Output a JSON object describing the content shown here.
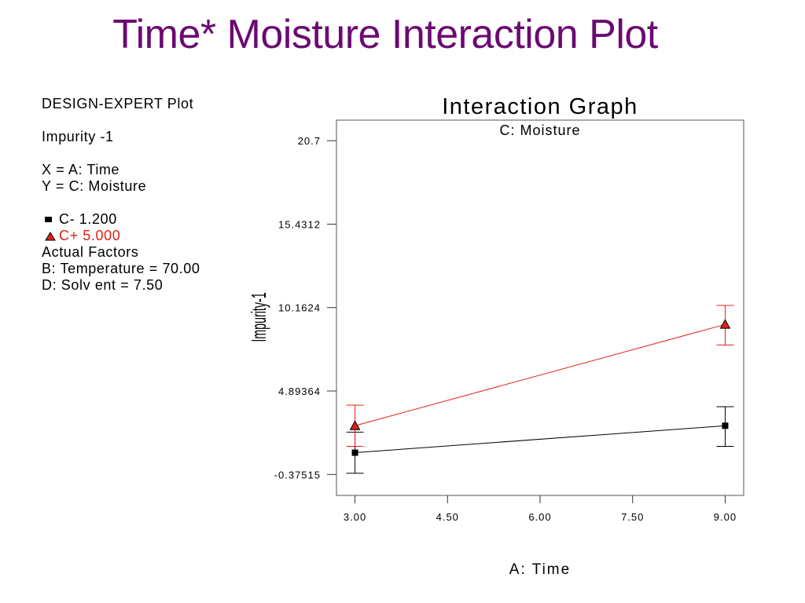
{
  "slide": {
    "title": "Time* Moisture Interaction Plot"
  },
  "info_panel": {
    "plot_label": "DESIGN-EXPERT Plot",
    "response": "Impurity -1",
    "x_def": "X = A: Time",
    "y_def": "Y = C: Moisture",
    "legend": [
      {
        "label": "C- 1.200",
        "color": "#000000",
        "marker": "square"
      },
      {
        "label": "C+ 5.000",
        "color": "#e0201a",
        "marker": "triangle"
      }
    ],
    "actual_factors_label": "Actual Factors",
    "factor_b": "B: Temperature = 70.00",
    "factor_d": "D: Solv ent = 7.50"
  },
  "chart_data": {
    "type": "line",
    "title": "Interaction Graph",
    "subtitle": "C: Moisture",
    "xlabel": "A: Time",
    "ylabel": "Impurity-1",
    "xlim": [
      2.7,
      9.3
    ],
    "ylim": [
      -1.7,
      22.0
    ],
    "x_ticks": [
      3.0,
      4.5,
      6.0,
      7.5,
      9.0
    ],
    "x_tick_labels": [
      "3.00",
      "4.50",
      "6.00",
      "7.50",
      "9.00"
    ],
    "y_ticks": [
      -0.37515,
      4.89364,
      10.1624,
      15.4312,
      20.7
    ],
    "y_tick_labels": [
      "-0.37515",
      "4.89364",
      "10.1624",
      "15.4312",
      "20.7"
    ],
    "grid": false,
    "series": [
      {
        "name": "C- 1.200",
        "color": "#000000",
        "marker": "square",
        "x": [
          3.0,
          9.0
        ],
        "y": [
          1.0,
          2.7
        ],
        "err_low": [
          -0.3,
          1.4
        ],
        "err_high": [
          2.3,
          3.9
        ]
      },
      {
        "name": "C+ 5.000",
        "color": "#e0201a",
        "marker": "triangle",
        "x": [
          3.0,
          9.0
        ],
        "y": [
          2.7,
          9.1
        ],
        "err_low": [
          1.4,
          7.8
        ],
        "err_high": [
          4.0,
          10.3
        ]
      }
    ]
  }
}
